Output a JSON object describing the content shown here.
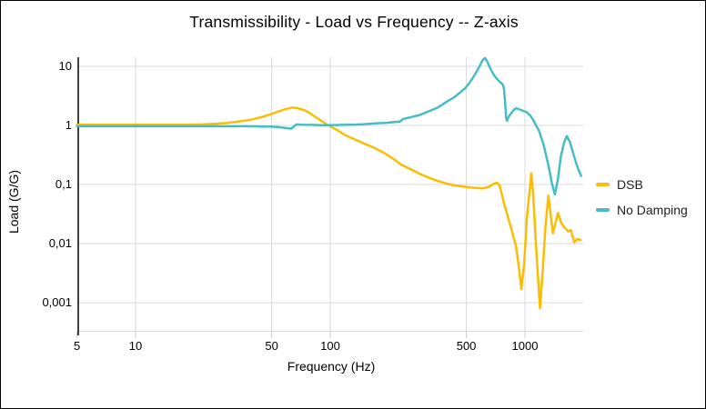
{
  "title": "Transmissibility - Load vs Frequency -- Z-axis",
  "colors": {
    "background": "#ffffff",
    "border": "#000000",
    "grid": "#d9d9d9",
    "axis_line": "#000000",
    "tick_mark": "#cccccc",
    "text": "#000000",
    "dsb": "#FBBC04",
    "no_damping": "#46BDC6"
  },
  "chart_data": {
    "type": "line",
    "title": "Transmissibility - Load vs Frequency -- Z-axis",
    "xlabel": "Frequency (Hz)",
    "ylabel": "Load (G/G)",
    "x_scale": "log",
    "y_scale": "log",
    "xlim": [
      5,
      2000
    ],
    "ylim": [
      0.0003,
      14.5
    ],
    "grid": true,
    "x_ticks": {
      "values": [
        5,
        10,
        50,
        100,
        500,
        1000
      ],
      "labels": [
        "5",
        "10",
        "50",
        "100",
        "500",
        "1000"
      ]
    },
    "y_ticks": {
      "values": [
        10,
        1,
        0.1,
        0.01,
        0.001
      ],
      "labels": [
        "10",
        "1",
        "0,1",
        "0,01",
        "0,001"
      ]
    },
    "legend": {
      "position": "right",
      "entries": [
        {
          "label": "DSB",
          "color": "#FBBC04"
        },
        {
          "label": "No Damping",
          "color": "#46BDC6"
        }
      ]
    },
    "series": [
      {
        "name": "DSB",
        "color": "#FBBC04",
        "points": [
          [
            5,
            1.03
          ],
          [
            7,
            1.03
          ],
          [
            10,
            1.03
          ],
          [
            14,
            1.03
          ],
          [
            18,
            1.03
          ],
          [
            22,
            1.04
          ],
          [
            26,
            1.07
          ],
          [
            30,
            1.11
          ],
          [
            35,
            1.18
          ],
          [
            40,
            1.27
          ],
          [
            45,
            1.4
          ],
          [
            50,
            1.57
          ],
          [
            55,
            1.75
          ],
          [
            60,
            1.92
          ],
          [
            64,
            2.0
          ],
          [
            68,
            1.96
          ],
          [
            74,
            1.8
          ],
          [
            80,
            1.55
          ],
          [
            88,
            1.25
          ],
          [
            98,
            1.0
          ],
          [
            108,
            0.84
          ],
          [
            120,
            0.68
          ],
          [
            135,
            0.57
          ],
          [
            152,
            0.48
          ],
          [
            168,
            0.42
          ],
          [
            190,
            0.34
          ],
          [
            212,
            0.27
          ],
          [
            232,
            0.215
          ],
          [
            260,
            0.18
          ],
          [
            290,
            0.15
          ],
          [
            320,
            0.131
          ],
          [
            356,
            0.115
          ],
          [
            400,
            0.103
          ],
          [
            440,
            0.096
          ],
          [
            500,
            0.091
          ],
          [
            550,
            0.088
          ],
          [
            610,
            0.086
          ],
          [
            655,
            0.092
          ],
          [
            695,
            0.104
          ],
          [
            717,
            0.107
          ],
          [
            740,
            0.098
          ],
          [
            762,
            0.068
          ],
          [
            782,
            0.047
          ],
          [
            800,
            0.036
          ],
          [
            850,
            0.018
          ],
          [
            900,
            0.009
          ],
          [
            935,
            0.0035
          ],
          [
            958,
            0.0017
          ],
          [
            990,
            0.0045
          ],
          [
            1022,
            0.026
          ],
          [
            1055,
            0.075
          ],
          [
            1078,
            0.155
          ],
          [
            1100,
            0.075
          ],
          [
            1133,
            0.013
          ],
          [
            1160,
            0.0036
          ],
          [
            1195,
            0.0008
          ],
          [
            1235,
            0.0036
          ],
          [
            1272,
            0.018
          ],
          [
            1318,
            0.065
          ],
          [
            1360,
            0.028
          ],
          [
            1392,
            0.015
          ],
          [
            1432,
            0.022
          ],
          [
            1478,
            0.033
          ],
          [
            1540,
            0.022
          ],
          [
            1592,
            0.019
          ],
          [
            1670,
            0.016
          ],
          [
            1720,
            0.017
          ],
          [
            1790,
            0.0105
          ],
          [
            1860,
            0.012
          ],
          [
            1930,
            0.0115
          ]
        ]
      },
      {
        "name": "No Damping",
        "color": "#46BDC6",
        "points": [
          [
            5,
            0.97
          ],
          [
            10,
            0.97
          ],
          [
            15,
            0.97
          ],
          [
            20,
            0.97
          ],
          [
            25,
            0.97
          ],
          [
            30,
            0.97
          ],
          [
            35,
            0.97
          ],
          [
            40,
            0.965
          ],
          [
            45,
            0.96
          ],
          [
            50,
            0.95
          ],
          [
            55,
            0.93
          ],
          [
            60,
            0.9
          ],
          [
            63,
            0.88
          ],
          [
            65,
            0.96
          ],
          [
            67,
            1.04
          ],
          [
            72,
            1.03
          ],
          [
            80,
            1.02
          ],
          [
            90,
            1.01
          ],
          [
            100,
            1.01
          ],
          [
            115,
            1.02
          ],
          [
            130,
            1.03
          ],
          [
            150,
            1.05
          ],
          [
            170,
            1.08
          ],
          [
            195,
            1.11
          ],
          [
            215,
            1.14
          ],
          [
            228,
            1.16
          ],
          [
            236,
            1.28
          ],
          [
            255,
            1.36
          ],
          [
            287,
            1.5
          ],
          [
            320,
            1.73
          ],
          [
            356,
            2.0
          ],
          [
            395,
            2.5
          ],
          [
            427,
            2.9
          ],
          [
            460,
            3.5
          ],
          [
            495,
            4.3
          ],
          [
            520,
            5.3
          ],
          [
            550,
            7.0
          ],
          [
            580,
            9.6
          ],
          [
            605,
            12.6
          ],
          [
            622,
            13.8
          ],
          [
            640,
            12.2
          ],
          [
            658,
            9.8
          ],
          [
            680,
            7.9
          ],
          [
            700,
            6.8
          ],
          [
            725,
            5.9
          ],
          [
            750,
            5.3
          ],
          [
            770,
            4.9
          ],
          [
            780,
            4.2
          ],
          [
            790,
            2.6
          ],
          [
            800,
            1.35
          ],
          [
            808,
            1.2
          ],
          [
            825,
            1.4
          ],
          [
            855,
            1.65
          ],
          [
            880,
            1.85
          ],
          [
            905,
            1.95
          ],
          [
            940,
            1.86
          ],
          [
            980,
            1.76
          ],
          [
            1020,
            1.68
          ],
          [
            1060,
            1.5
          ],
          [
            1100,
            1.25
          ],
          [
            1140,
            1.0
          ],
          [
            1180,
            0.82
          ],
          [
            1250,
            0.46
          ],
          [
            1320,
            0.21
          ],
          [
            1380,
            0.1
          ],
          [
            1425,
            0.068
          ],
          [
            1475,
            0.12
          ],
          [
            1530,
            0.3
          ],
          [
            1590,
            0.52
          ],
          [
            1640,
            0.66
          ],
          [
            1700,
            0.53
          ],
          [
            1760,
            0.36
          ],
          [
            1840,
            0.22
          ],
          [
            1900,
            0.165
          ],
          [
            1945,
            0.14
          ]
        ]
      }
    ]
  }
}
